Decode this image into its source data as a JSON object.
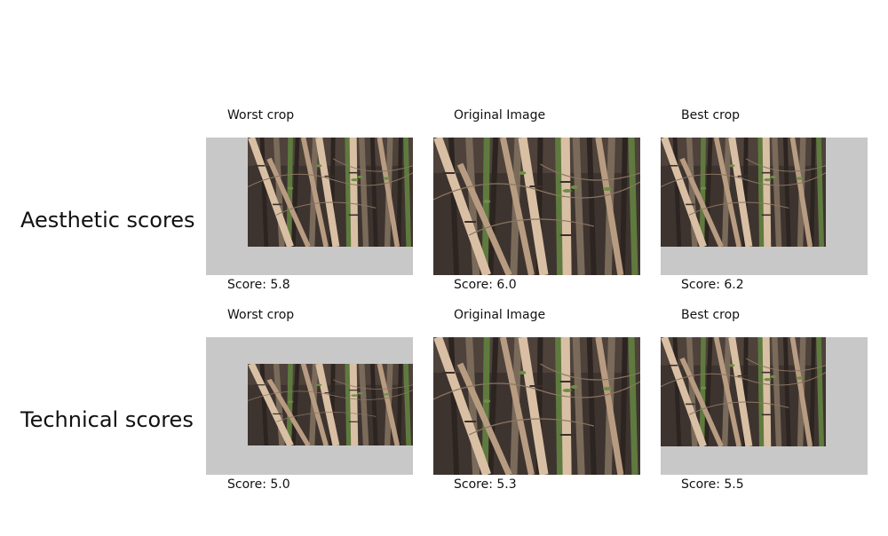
{
  "rows": [
    {
      "title": "Aesthetic scores",
      "panels": [
        {
          "caption": "Worst crop",
          "score": "Score: 5.8"
        },
        {
          "caption": "Original Image",
          "score": "Score: 6.0"
        },
        {
          "caption": "Best crop",
          "score": "Score: 6.2"
        }
      ]
    },
    {
      "title": "Technical scores",
      "panels": [
        {
          "caption": "Worst crop",
          "score": "Score: 5.0"
        },
        {
          "caption": "Original Image",
          "score": "Score: 5.3"
        },
        {
          "caption": "Best crop",
          "score": "Score: 5.5"
        }
      ]
    }
  ],
  "colors": {
    "crop_background": "#c8c8c8",
    "bamboo_light": "#d9c0a4",
    "bamboo_dark": "#4a3f37",
    "foliage": "#5f7a3e"
  },
  "image_subject": "bamboo-forest-photo"
}
